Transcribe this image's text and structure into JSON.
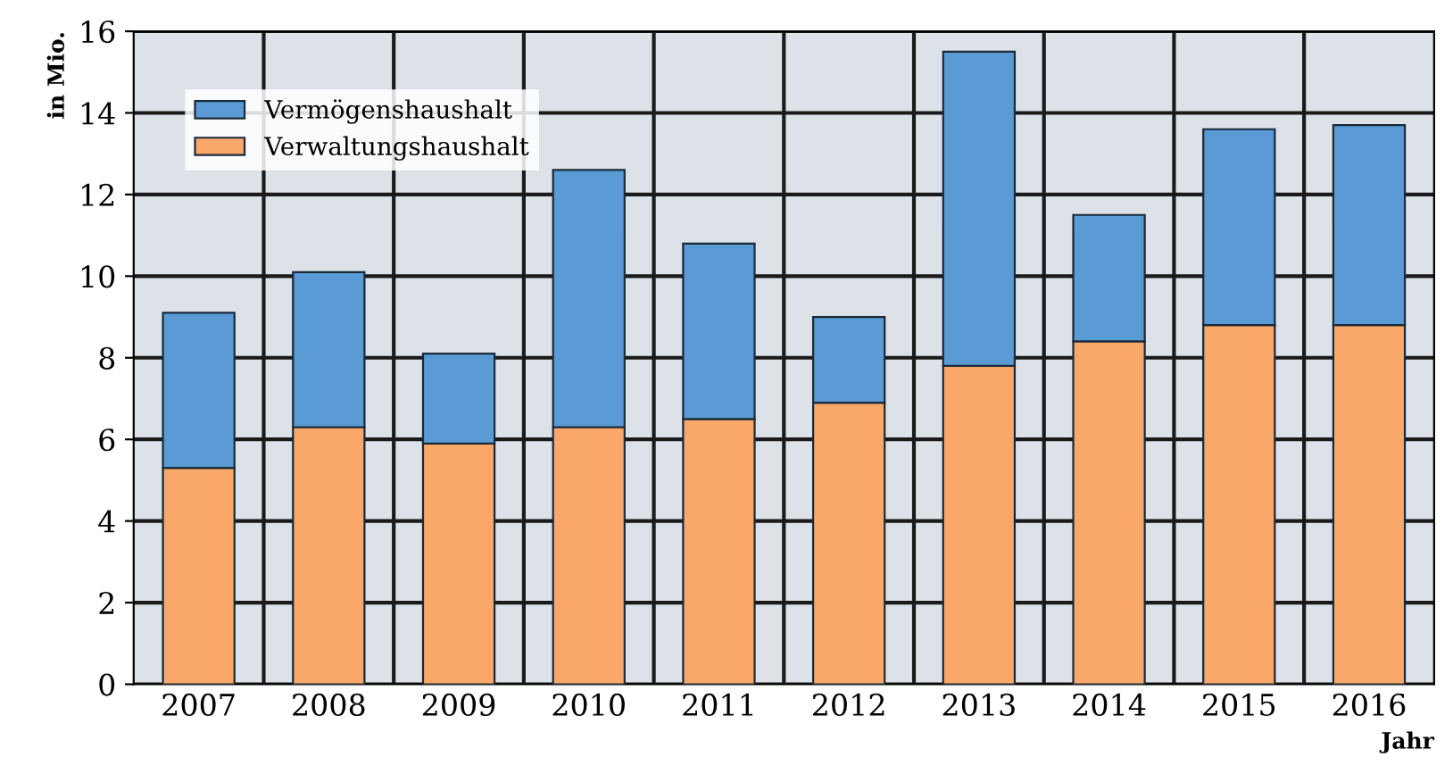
{
  "chart_data": {
    "type": "bar",
    "stacked": true,
    "xlabel": "Jahr",
    "ylabel": "in Mio.",
    "categories": [
      "2007",
      "2008",
      "2009",
      "2010",
      "2011",
      "2012",
      "2013",
      "2014",
      "2015",
      "2016"
    ],
    "series": [
      {
        "name": "Verwaltungshaushalt",
        "color": "#f9a86a",
        "values": [
          5.3,
          6.3,
          5.9,
          6.3,
          6.5,
          6.9,
          7.8,
          8.4,
          8.8,
          8.8
        ]
      },
      {
        "name": "Vermögenshaushalt",
        "color": "#5b9bd5",
        "values": [
          3.8,
          3.8,
          2.2,
          6.3,
          4.3,
          2.1,
          7.7,
          3.1,
          4.8,
          4.9
        ]
      }
    ],
    "ylim": [
      0,
      16
    ],
    "yticks": [
      0,
      2,
      4,
      6,
      8,
      10,
      12,
      14,
      16
    ],
    "grid": true,
    "legend": "top left"
  }
}
